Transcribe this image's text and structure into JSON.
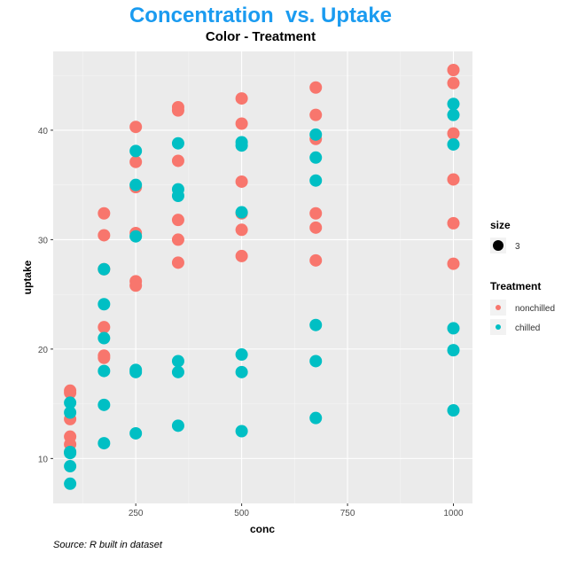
{
  "chart_data": {
    "type": "scatter",
    "title": "Concentration  vs. Uptake",
    "subtitle": "Color - Treatment",
    "xlabel": "conc",
    "ylabel": "uptake",
    "caption": "Source: R built in dataset",
    "xlim": [
      55,
      1045
    ],
    "ylim": [
      5.9,
      47.2
    ],
    "xticks": [
      250,
      500,
      750,
      1000
    ],
    "yticks": [
      10,
      20,
      30,
      40
    ],
    "grid": true,
    "legend_position": "right",
    "size_legend": {
      "title": "size",
      "label": "3"
    },
    "color_legend_title": "Treatment",
    "conc": [
      95,
      175,
      250,
      350,
      500,
      675,
      1000
    ],
    "series": [
      {
        "name": "nonchilled",
        "color": "#F8766D",
        "plants": [
          [
            16.0,
            30.4,
            34.8,
            37.2,
            35.3,
            39.2,
            39.7
          ],
          [
            13.6,
            27.3,
            37.1,
            41.8,
            40.6,
            41.4,
            44.3
          ],
          [
            16.2,
            32.4,
            40.3,
            42.1,
            42.9,
            43.9,
            45.5
          ],
          [
            11.3,
            19.4,
            25.8,
            27.9,
            28.5,
            28.1,
            27.8
          ],
          [
            12.0,
            22.0,
            30.6,
            31.8,
            32.4,
            31.1,
            31.5
          ],
          [
            10.6,
            19.2,
            26.2,
            30.0,
            30.9,
            32.4,
            35.5
          ]
        ]
      },
      {
        "name": "chilled",
        "color": "#00BFC4",
        "plants": [
          [
            14.2,
            24.1,
            30.3,
            34.6,
            32.5,
            35.4,
            38.7
          ],
          [
            15.1,
            21.0,
            38.1,
            34.0,
            38.9,
            39.6,
            41.4
          ],
          [
            9.3,
            27.3,
            35.0,
            38.8,
            38.6,
            37.5,
            42.4
          ],
          [
            7.7,
            11.4,
            12.3,
            13.0,
            12.5,
            13.7,
            14.4
          ],
          [
            10.6,
            18.0,
            17.9,
            17.9,
            17.9,
            18.9,
            19.9
          ],
          [
            10.5,
            14.9,
            18.1,
            18.9,
            19.5,
            22.2,
            21.9
          ]
        ]
      }
    ],
    "title_color": "#1A9BF0"
  }
}
